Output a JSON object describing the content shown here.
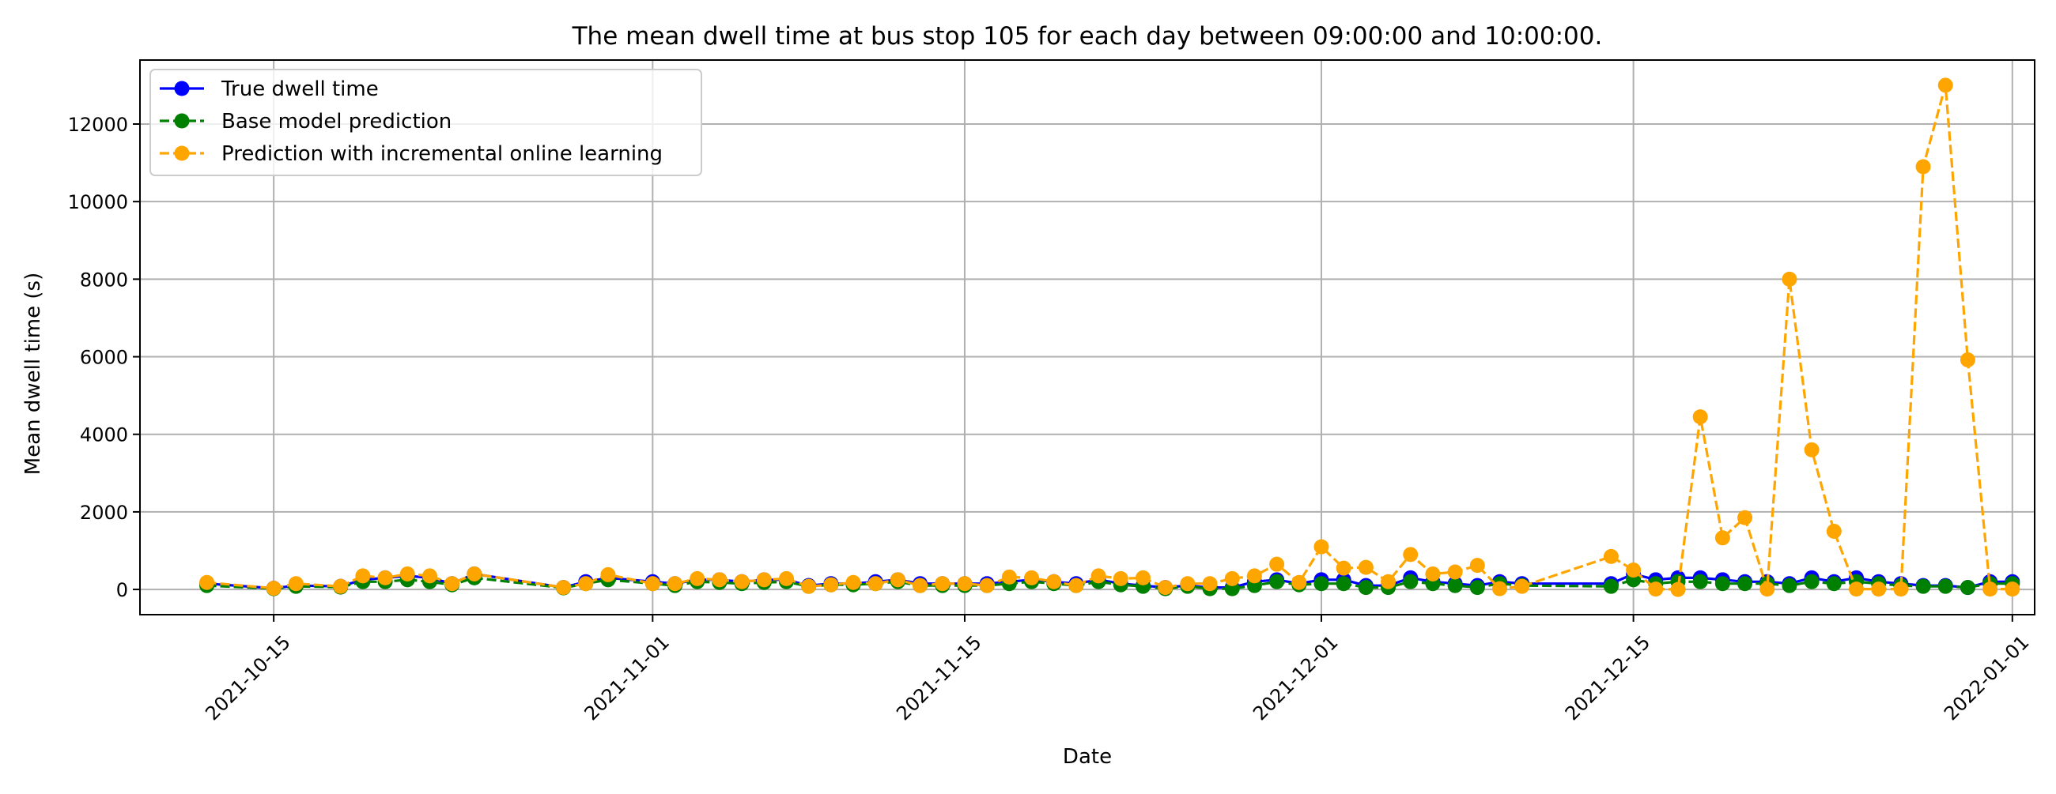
{
  "chart_data": {
    "type": "line",
    "title": "The mean dwell time at bus stop 105 for each day between 09:00:00 and 10:00:00.",
    "xlabel": "Date",
    "ylabel": "Mean dwell time (s)",
    "x_range": [
      "2021-10-09",
      "2022-01-02"
    ],
    "ylim": [
      -650,
      13650
    ],
    "x_ticks": [
      "2021-10-15",
      "2021-11-01",
      "2021-11-15",
      "2021-12-01",
      "2021-12-15",
      "2022-01-01"
    ],
    "y_ticks": [
      0,
      2000,
      4000,
      6000,
      8000,
      10000,
      12000
    ],
    "grid": true,
    "legend_position": "top-left",
    "x": [
      "2021-10-12",
      "2021-10-15",
      "2021-10-16",
      "2021-10-18",
      "2021-10-19",
      "2021-10-20",
      "2021-10-21",
      "2021-10-22",
      "2021-10-23",
      "2021-10-24",
      "2021-10-28",
      "2021-10-29",
      "2021-10-30",
      "2021-11-01",
      "2021-11-02",
      "2021-11-03",
      "2021-11-04",
      "2021-11-05",
      "2021-11-06",
      "2021-11-07",
      "2021-11-08",
      "2021-11-09",
      "2021-11-10",
      "2021-11-11",
      "2021-11-12",
      "2021-11-13",
      "2021-11-14",
      "2021-11-15",
      "2021-11-16",
      "2021-11-17",
      "2021-11-18",
      "2021-11-19",
      "2021-11-20",
      "2021-11-21",
      "2021-11-22",
      "2021-11-23",
      "2021-11-24",
      "2021-11-25",
      "2021-11-26",
      "2021-11-27",
      "2021-11-28",
      "2021-11-29",
      "2021-11-30",
      "2021-12-01",
      "2021-12-02",
      "2021-12-03",
      "2021-12-04",
      "2021-12-05",
      "2021-12-06",
      "2021-12-07",
      "2021-12-08",
      "2021-12-09",
      "2021-12-10",
      "2021-12-14",
      "2021-12-15",
      "2021-12-16",
      "2021-12-17",
      "2021-12-18",
      "2021-12-19",
      "2021-12-20",
      "2021-12-21",
      "2021-12-22",
      "2021-12-23",
      "2021-12-24",
      "2021-12-25",
      "2021-12-26",
      "2021-12-27",
      "2021-12-28",
      "2021-12-29",
      "2021-12-30",
      "2021-12-31",
      "2022-01-01"
    ],
    "series": [
      {
        "name": "True dwell time",
        "color": "#0000ff",
        "line_style": "solid",
        "values": [
          150,
          30,
          100,
          80,
          250,
          300,
          350,
          300,
          150,
          400,
          50,
          200,
          300,
          200,
          150,
          250,
          250,
          200,
          250,
          250,
          100,
          150,
          150,
          200,
          250,
          150,
          150,
          150,
          150,
          200,
          250,
          200,
          150,
          250,
          150,
          100,
          50,
          100,
          50,
          50,
          200,
          250,
          150,
          250,
          250,
          100,
          100,
          300,
          200,
          150,
          100,
          200,
          150,
          150,
          400,
          250,
          300,
          300,
          250,
          200,
          200,
          150,
          300,
          200,
          300,
          200,
          150,
          100,
          100,
          50,
          200,
          200
        ]
      },
      {
        "name": "Base model prediction",
        "color": "#008000",
        "line_style": "dashed",
        "values": [
          100,
          20,
          80,
          60,
          200,
          200,
          250,
          200,
          120,
          300,
          40,
          150,
          250,
          150,
          100,
          200,
          180,
          150,
          180,
          200,
          80,
          120,
          120,
          150,
          200,
          100,
          100,
          100,
          100,
          150,
          200,
          150,
          100,
          200,
          120,
          80,
          20,
          80,
          20,
          20,
          100,
          200,
          120,
          150,
          150,
          50,
          50,
          200,
          150,
          100,
          50,
          150,
          100,
          80,
          250,
          150,
          200,
          200,
          150,
          150,
          150,
          100,
          200,
          150,
          200,
          150,
          100,
          80,
          80,
          50,
          150,
          150
        ]
      },
      {
        "name": "Prediction with incremental online learning",
        "color": "#ffa500",
        "line_style": "dashed",
        "values": [
          180,
          30,
          150,
          80,
          350,
          300,
          400,
          350,
          150,
          400,
          50,
          150,
          380,
          150,
          150,
          280,
          250,
          200,
          250,
          280,
          80,
          120,
          180,
          150,
          250,
          100,
          150,
          150,
          100,
          320,
          300,
          200,
          100,
          350,
          280,
          300,
          50,
          150,
          150,
          280,
          350,
          650,
          180,
          1100,
          550,
          570,
          200,
          900,
          400,
          450,
          620,
          20,
          80,
          850,
          500,
          10,
          0,
          4450,
          1330,
          1850,
          10,
          8000,
          3600,
          1500,
          10,
          10,
          10,
          10900,
          13000,
          5920,
          10,
          10
        ]
      }
    ]
  }
}
